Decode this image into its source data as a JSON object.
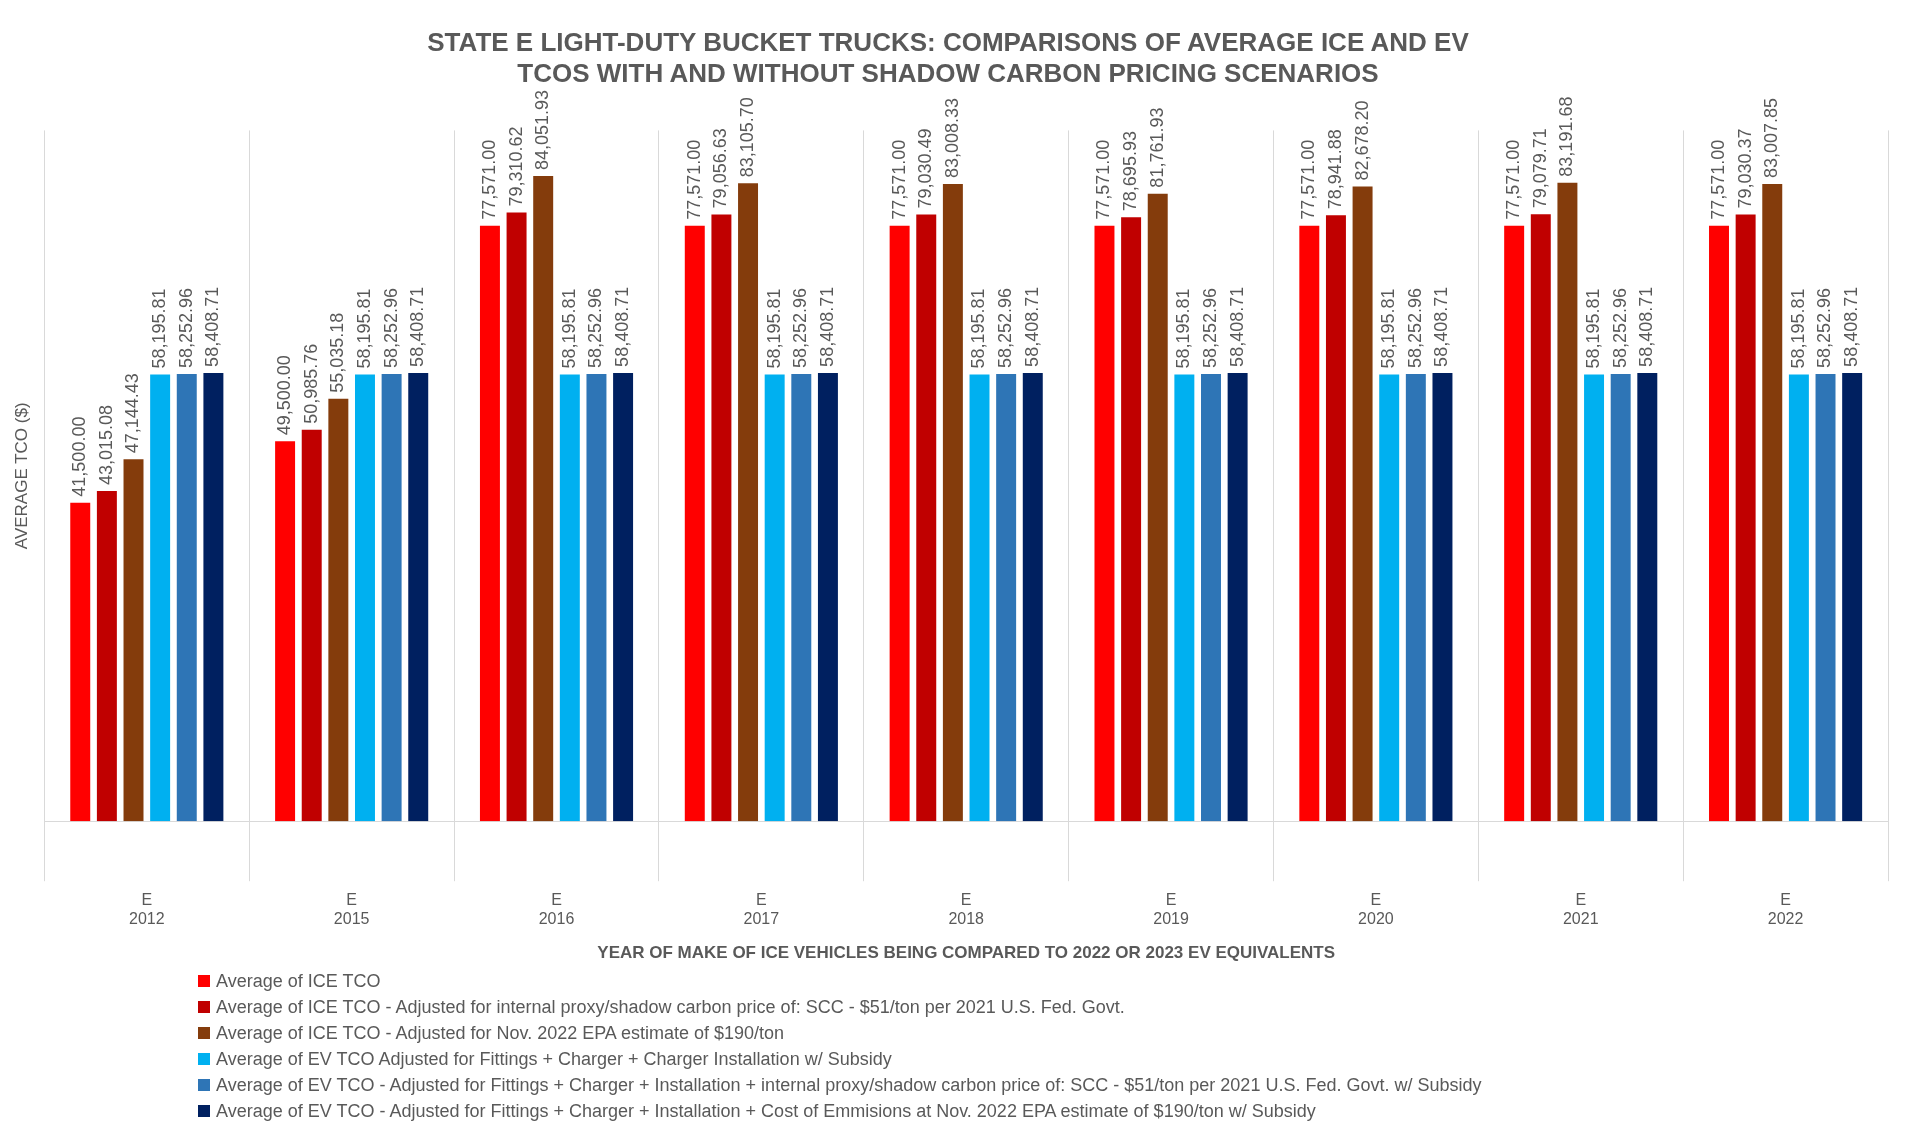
{
  "chart_data": {
    "type": "bar",
    "title": "STATE E LIGHT-DUTY BUCKET TRUCKS: COMPARISONS OF AVERAGE ICE AND EV TCOS WITH AND WITHOUT SHADOW CARBON PRICING SCENARIOS",
    "xlabel": "YEAR OF MAKE OF ICE VEHICLES BEING COMPARED TO 2022 OR 2023 EV EQUIVALENTS",
    "ylabel": "AVERAGE TCO ($)",
    "categories": [
      "E\n2012",
      "E\n2015",
      "E\n2016",
      "E\n2017",
      "E\n2018",
      "E\n2019",
      "E\n2020",
      "E\n2021",
      "E\n2022"
    ],
    "series": [
      {
        "name": "Average of ICE TCO",
        "color": "#ff0000",
        "values": [
          41500.0,
          49500.0,
          77571.0,
          77571.0,
          77571.0,
          77571.0,
          77571.0,
          77571.0,
          77571.0
        ],
        "value_labels": [
          "41,500.00",
          "49,500.00",
          "77,571.00",
          "77,571.00",
          "77,571.00",
          "77,571.00",
          "77,571.00",
          "77,571.00",
          "77,571.00"
        ]
      },
      {
        "name": "Average of ICE TCO - Adjusted for internal proxy/shadow carbon price of: SCC - $51/ton per 2021 U.S. Fed. Govt.",
        "color": "#c00000",
        "values": [
          43015.08,
          50985.76,
          79310.62,
          79056.63,
          79030.49,
          78695.93,
          78941.88,
          79079.71,
          79030.37
        ],
        "value_labels": [
          "43,015.08",
          "50,985.76",
          "79,310.62",
          "79,056.63",
          "79,030.49",
          "78,695.93",
          "78,941.88",
          "79,079.71",
          "79,030.37"
        ]
      },
      {
        "name": "Average of ICE TCO - Adjusted for Nov. 2022 EPA estimate of $190/ton",
        "color": "#843c0c",
        "values": [
          47144.43,
          55035.18,
          84051.93,
          83105.7,
          83008.33,
          81761.93,
          82678.2,
          83191.68,
          83007.85
        ],
        "value_labels": [
          "47,144.43",
          "55,035.18",
          "84,051.93",
          "83,105.70",
          "83,008.33",
          "81,761.93",
          "82,678.20",
          "83,191.68",
          "83,007.85"
        ]
      },
      {
        "name": "Average of EV TCO Adjusted for Fittings + Charger + Charger Installation w/ Subsidy",
        "color": "#00b0f0",
        "values": [
          58195.81,
          58195.81,
          58195.81,
          58195.81,
          58195.81,
          58195.81,
          58195.81,
          58195.81,
          58195.81
        ],
        "value_labels": [
          "58,195.81",
          "58,195.81",
          "58,195.81",
          "58,195.81",
          "58,195.81",
          "58,195.81",
          "58,195.81",
          "58,195.81",
          "58,195.81"
        ]
      },
      {
        "name": "Average of EV TCO - Adjusted for Fittings + Charger + Installation + internal proxy/shadow carbon price of: SCC - $51/ton per 2021 U.S. Fed. Govt. w/ Subsidy",
        "color": "#2e75b6",
        "values": [
          58252.96,
          58252.96,
          58252.96,
          58252.96,
          58252.96,
          58252.96,
          58252.96,
          58252.96,
          58252.96
        ],
        "value_labels": [
          "58,252.96",
          "58,252.96",
          "58,252.96",
          "58,252.96",
          "58,252.96",
          "58,252.96",
          "58,252.96",
          "58,252.96",
          "58,252.96"
        ]
      },
      {
        "name": "Average of EV TCO - Adjusted for Fittings + Charger + Installation + Cost of Emmisions at Nov. 2022 EPA estimate of $190/ton w/ Subsidy",
        "color": "#002060",
        "values": [
          58408.71,
          58408.71,
          58408.71,
          58408.71,
          58408.71,
          58408.71,
          58408.71,
          58408.71,
          58408.71
        ],
        "value_labels": [
          "58,408.71",
          "58,408.71",
          "58,408.71",
          "58,408.71",
          "58,408.71",
          "58,408.71",
          "58,408.71",
          "58,408.71",
          "58,408.71"
        ]
      }
    ],
    "grid": "x",
    "legend": "bottom"
  }
}
